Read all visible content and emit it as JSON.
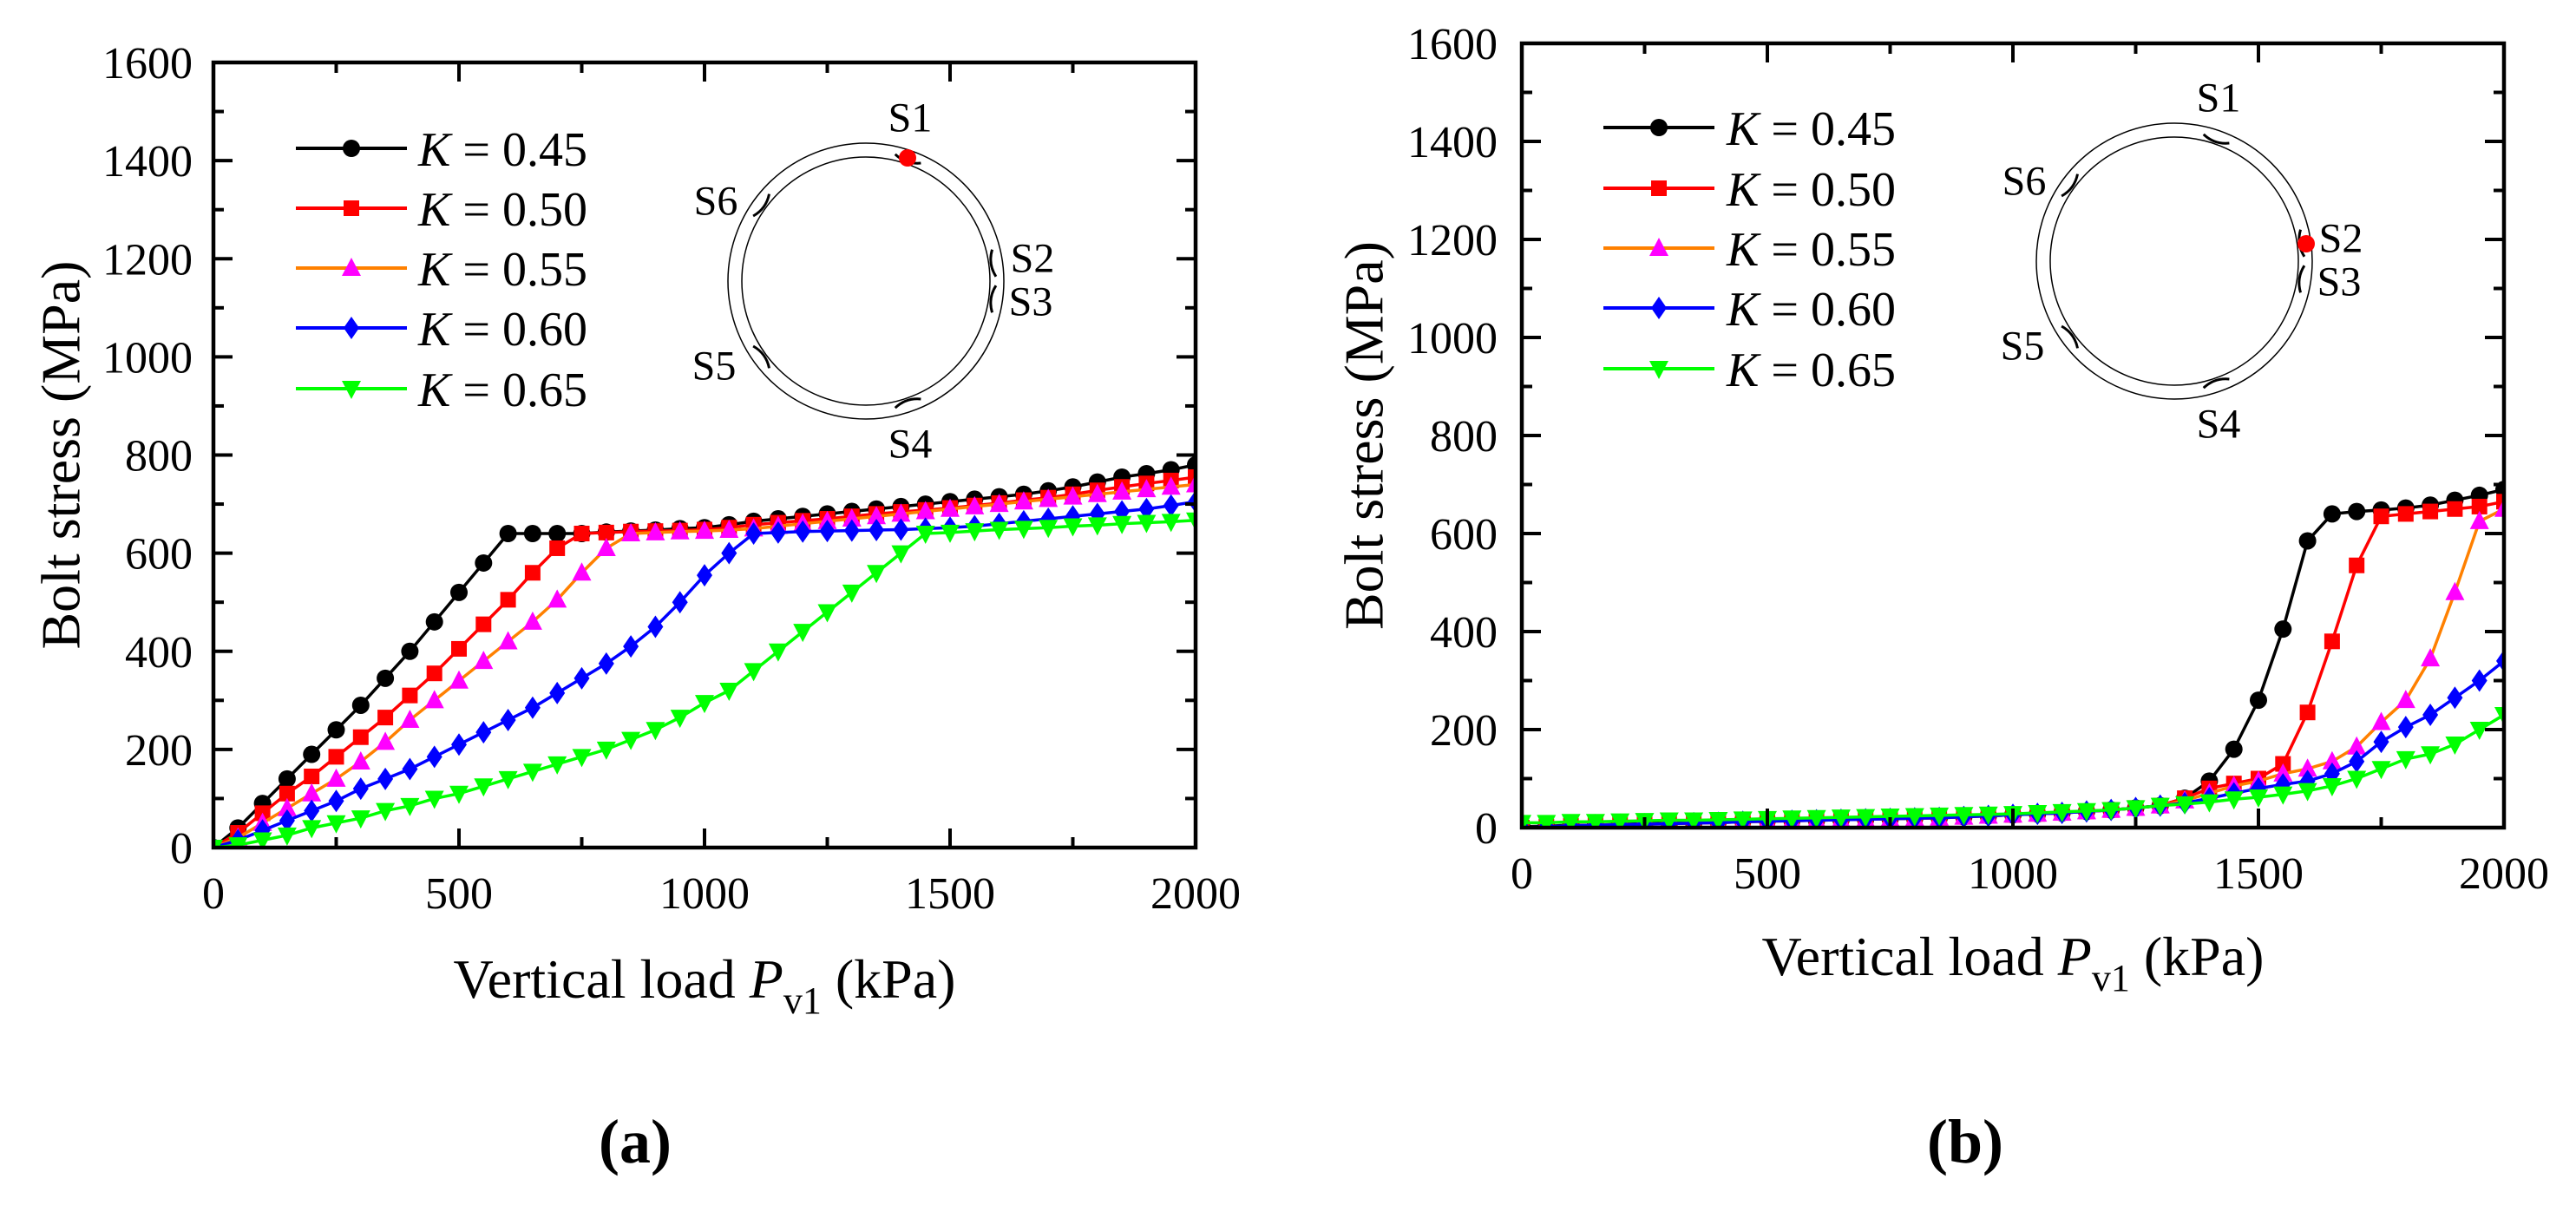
{
  "chart_data": [
    {
      "type": "line",
      "panel_label": "(a)",
      "title": "",
      "ylabel": "Bolt stress (MPa)",
      "xlabel": {
        "prefix": "Vertical load ",
        "var": "P",
        "sub": "v1",
        "suffix": " (kPa)"
      },
      "xlim": [
        0,
        2000
      ],
      "ylim": [
        0,
        1600
      ],
      "xticks": [
        "0",
        "500",
        "1000",
        "1500",
        "2000"
      ],
      "yticks": [
        "0",
        "200",
        "400",
        "600",
        "800",
        "1000",
        "1200",
        "1400",
        "1600"
      ],
      "grid": false,
      "legend_position": "top-left",
      "x": [
        0,
        50,
        100,
        150,
        200,
        250,
        300,
        350,
        400,
        450,
        500,
        550,
        600,
        650,
        700,
        750,
        800,
        850,
        900,
        950,
        1000,
        1050,
        1100,
        1150,
        1200,
        1250,
        1300,
        1350,
        1400,
        1450,
        1500,
        1550,
        1600,
        1650,
        1700,
        1750,
        1800,
        1850,
        1900,
        1950,
        2000
      ],
      "series": [
        {
          "name": "K = 0.45",
          "line_color": "#000000",
          "marker_color": "#000000",
          "marker": "circle",
          "values": [
            0,
            40,
            90,
            140,
            190,
            240,
            290,
            345,
            400,
            460,
            520,
            580,
            640,
            640,
            640,
            640,
            643,
            645,
            647,
            650,
            652,
            658,
            665,
            670,
            675,
            680,
            685,
            690,
            695,
            700,
            705,
            710,
            715,
            720,
            727,
            735,
            745,
            755,
            762,
            770,
            780
          ]
        },
        {
          "name": "K = 0.50",
          "line_color": "#ff0000",
          "marker_color": "#ff0000",
          "marker": "square",
          "values": [
            0,
            30,
            70,
            110,
            145,
            185,
            225,
            265,
            310,
            355,
            405,
            455,
            505,
            560,
            610,
            640,
            642,
            644,
            645,
            646,
            648,
            652,
            658,
            662,
            666,
            670,
            675,
            680,
            684,
            688,
            692,
            697,
            702,
            708,
            713,
            720,
            728,
            735,
            742,
            748,
            755
          ]
        },
        {
          "name": "K = 0.55",
          "line_color": "#ff8000",
          "marker_color": "#ff00ff",
          "marker": "triangle-up",
          "values": [
            0,
            20,
            50,
            80,
            110,
            140,
            175,
            215,
            260,
            300,
            340,
            380,
            420,
            460,
            505,
            560,
            610,
            640,
            642,
            644,
            645,
            647,
            650,
            655,
            660,
            665,
            670,
            675,
            680,
            685,
            690,
            695,
            700,
            705,
            710,
            715,
            720,
            725,
            730,
            735,
            740
          ]
        },
        {
          "name": "K = 0.60",
          "line_color": "#0000ff",
          "marker_color": "#0000ff",
          "marker": "diamond",
          "values": [
            0,
            15,
            35,
            55,
            75,
            95,
            120,
            140,
            160,
            185,
            210,
            235,
            260,
            285,
            315,
            345,
            375,
            410,
            450,
            500,
            555,
            600,
            640,
            642,
            644,
            645,
            646,
            647,
            648,
            650,
            652,
            655,
            660,
            665,
            670,
            675,
            680,
            685,
            690,
            697,
            705
          ]
        },
        {
          "name": "K = 0.65",
          "line_color": "#00ff00",
          "marker_color": "#00ff00",
          "marker": "triangle-down",
          "values": [
            0,
            5,
            15,
            25,
            40,
            50,
            60,
            75,
            85,
            100,
            110,
            125,
            140,
            155,
            170,
            185,
            200,
            220,
            240,
            265,
            295,
            320,
            360,
            400,
            440,
            480,
            520,
            560,
            600,
            640,
            642,
            645,
            648,
            650,
            652,
            655,
            657,
            660,
            662,
            664,
            667
          ]
        }
      ],
      "inset": {
        "labels": [
          "S1",
          "S2",
          "S3",
          "S4",
          "S5",
          "S6"
        ],
        "highlighted": "S1",
        "highlight_color": "#ff0000"
      }
    },
    {
      "type": "line",
      "panel_label": "(b)",
      "title": "",
      "ylabel": "Bolt stress (MPa)",
      "xlabel": {
        "prefix": "Vertical load ",
        "var": "P",
        "sub": "v1",
        "suffix": " (kPa)"
      },
      "xlim": [
        0,
        2000
      ],
      "ylim": [
        0,
        1600
      ],
      "xticks": [
        "0",
        "500",
        "1000",
        "1500",
        "2000"
      ],
      "yticks": [
        "0",
        "200",
        "400",
        "600",
        "800",
        "1000",
        "1200",
        "1400",
        "1600"
      ],
      "grid": false,
      "legend_position": "top-left",
      "x": [
        0,
        50,
        100,
        150,
        200,
        250,
        300,
        350,
        400,
        450,
        500,
        550,
        600,
        650,
        700,
        750,
        800,
        850,
        900,
        950,
        1000,
        1050,
        1100,
        1150,
        1200,
        1250,
        1300,
        1350,
        1400,
        1450,
        1500,
        1550,
        1600,
        1650,
        1700,
        1750,
        1800,
        1850,
        1900,
        1950,
        2000
      ],
      "series": [
        {
          "name": "K = 0.45",
          "line_color": "#000000",
          "marker_color": "#000000",
          "marker": "circle",
          "values": [
            2,
            3,
            5,
            5,
            7,
            8,
            9,
            10,
            12,
            14,
            15,
            15,
            15,
            16,
            17,
            18,
            19,
            20,
            22,
            24,
            26,
            28,
            30,
            33,
            36,
            40,
            45,
            60,
            95,
            160,
            260,
            405,
            585,
            640,
            645,
            648,
            652,
            658,
            668,
            678,
            690
          ]
        },
        {
          "name": "K = 0.50",
          "line_color": "#ff0000",
          "marker_color": "#ff0000",
          "marker": "square",
          "values": [
            0,
            2,
            4,
            5,
            6,
            7,
            8,
            9,
            10,
            12,
            13,
            14,
            15,
            16,
            17,
            18,
            19,
            20,
            22,
            24,
            26,
            28,
            30,
            33,
            36,
            40,
            45,
            60,
            80,
            90,
            100,
            130,
            235,
            380,
            535,
            635,
            640,
            645,
            650,
            655,
            665
          ]
        },
        {
          "name": "K = 0.55",
          "line_color": "#ff8000",
          "marker_color": "#ff00ff",
          "marker": "triangle-up",
          "values": [
            0,
            2,
            4,
            5,
            6,
            7,
            8,
            9,
            10,
            12,
            13,
            14,
            15,
            16,
            17,
            18,
            19,
            20,
            22,
            24,
            26,
            28,
            30,
            33,
            36,
            40,
            45,
            55,
            70,
            85,
            95,
            110,
            120,
            135,
            165,
            215,
            260,
            345,
            480,
            625,
            650
          ]
        },
        {
          "name": "K = 0.60",
          "line_color": "#0000ff",
          "marker_color": "#0000ff",
          "marker": "diamond",
          "values": [
            0,
            2,
            4,
            5,
            6,
            7,
            8,
            9,
            10,
            12,
            13,
            14,
            15,
            16,
            17,
            18,
            19,
            20,
            22,
            24,
            26,
            28,
            30,
            33,
            36,
            40,
            45,
            50,
            60,
            70,
            80,
            88,
            95,
            110,
            135,
            175,
            205,
            230,
            265,
            300,
            340
          ]
        },
        {
          "name": "K = 0.65",
          "line_color": "#00ff00",
          "marker_color": "#00ff00",
          "marker": "triangle-down",
          "values": [
            10,
            10,
            12,
            12,
            13,
            14,
            15,
            15,
            16,
            17,
            18,
            19,
            20,
            21,
            22,
            23,
            24,
            25,
            26,
            27,
            28,
            30,
            32,
            34,
            36,
            40,
            45,
            48,
            52,
            58,
            62,
            68,
            75,
            85,
            100,
            120,
            140,
            150,
            170,
            200,
            230
          ]
        }
      ],
      "inset": {
        "labels": [
          "S1",
          "S2",
          "S3",
          "S4",
          "S5",
          "S6"
        ],
        "highlighted": "S2",
        "highlight_color": "#ff0000"
      }
    }
  ]
}
